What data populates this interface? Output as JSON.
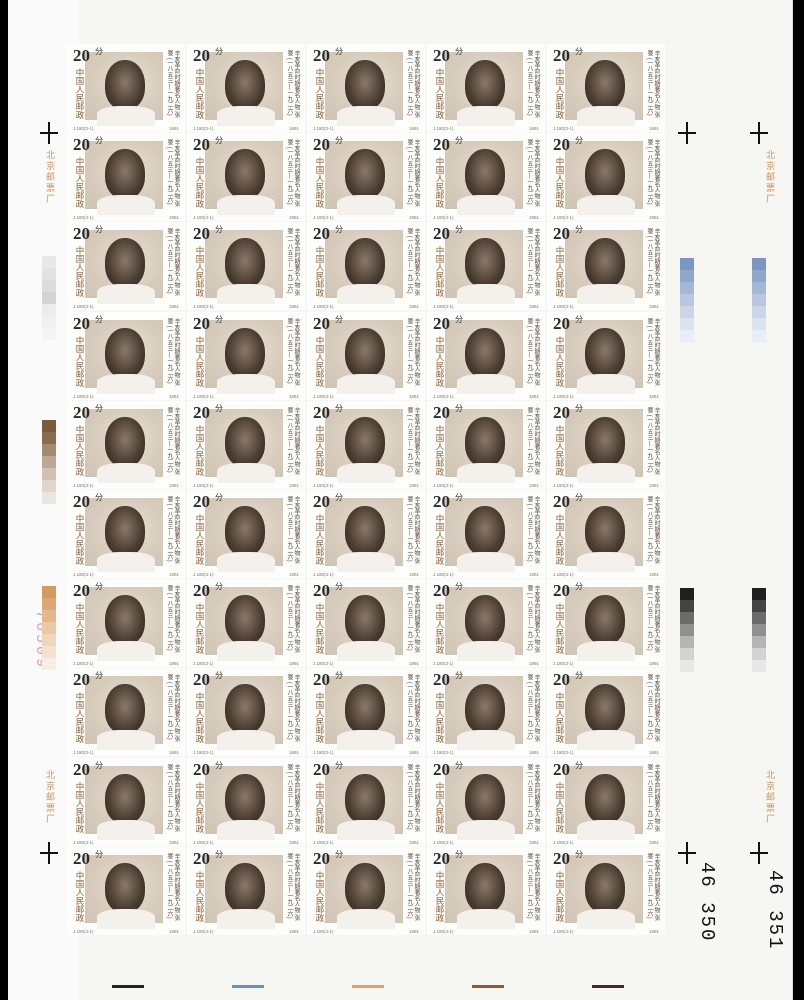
{
  "sheet": {
    "rows": 10,
    "cols": 5,
    "stamp": {
      "denomination": "20",
      "fen_mark": "分",
      "country": "中国人民邮政",
      "caption": "辛亥革命时期著名人物 张謇 (一八五三—一九二六)",
      "code": "J.180(3-1)",
      "year": "1991"
    },
    "margin_label": "北京邮票厂",
    "sheet_number": "76509",
    "serial_left": "46 350",
    "serial_right": "46 351",
    "portrait_colors": {
      "frame_accent": "#8a5a2c",
      "portrait_dark": "#4a3c31",
      "background": "#d8cdbd"
    },
    "color_bars": {
      "gray": [
        "#e8e8e8",
        "#e2e2e2",
        "#dcdcdc",
        "#d4d4d4",
        "#ececec",
        "#f0f0f0",
        "#f4f4f4"
      ],
      "brown": [
        "#7d5a3a",
        "#8c6a4c",
        "#a58a72",
        "#bda896",
        "#d1c1b3",
        "#e1d6cc",
        "#ece6e0"
      ],
      "orange": [
        "#d69a5e",
        "#dda774",
        "#e4b78d",
        "#eac7a5",
        "#f0d6bd",
        "#f4e2d1",
        "#f8ede3"
      ],
      "blue": [
        "#7c96c4",
        "#8fa6cd",
        "#a4b7d6",
        "#b9c8e0",
        "#cbd6e8",
        "#dbe3f0",
        "#e8edf6"
      ],
      "black": [
        "#202020",
        "#444",
        "#6b6b6b",
        "#909090",
        "#b4b4b4",
        "#d2d2d2",
        "#e8e8e8"
      ]
    },
    "bottom_strips": [
      "#222222",
      "#6c8fc0",
      "#e0a060",
      "#8a5a3a",
      "#3b2f2a"
    ]
  }
}
